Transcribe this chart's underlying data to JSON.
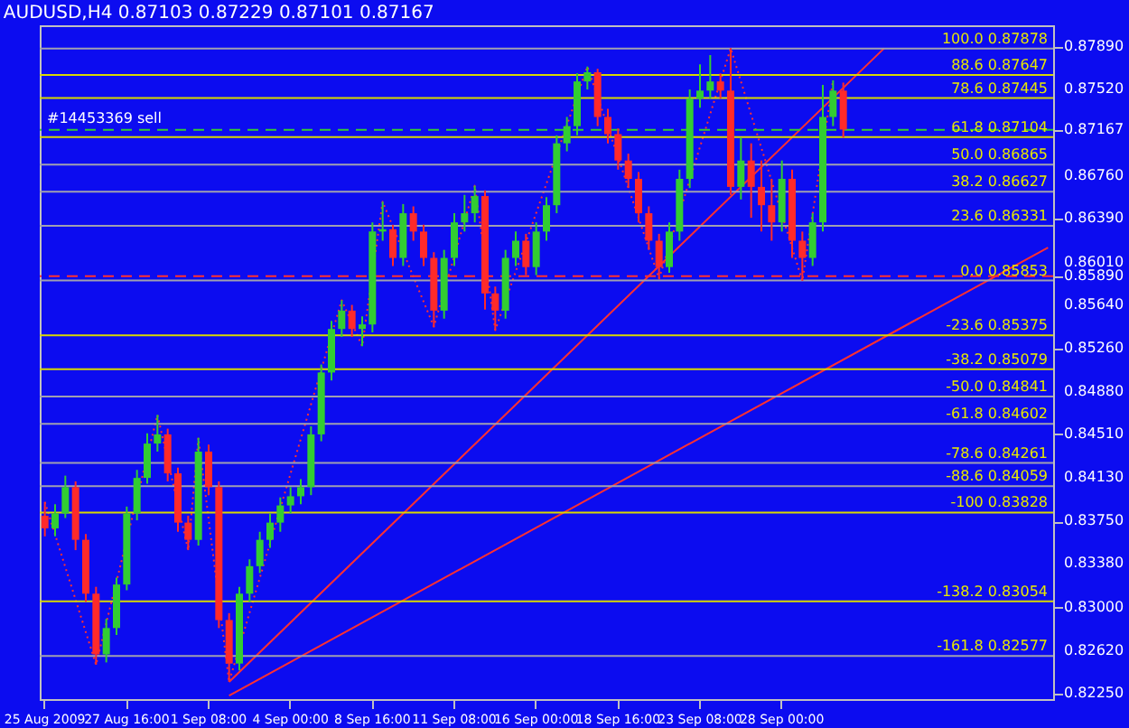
{
  "chart_data": {
    "type": "candlestick",
    "title": "AUDUSD,H4  0.87103 0.87229 0.87101 0.87167",
    "categories": [
      "25 Aug 2009",
      null,
      null,
      null,
      null,
      null,
      null,
      null,
      "27 Aug 16:00",
      null,
      null,
      null,
      null,
      null,
      null,
      null,
      "1 Sep 08:00",
      null,
      null,
      null,
      null,
      null,
      null,
      null,
      "4 Sep 00:00",
      null,
      null,
      null,
      null,
      null,
      null,
      null,
      "8 Sep 16:00",
      null,
      null,
      null,
      null,
      null,
      null,
      null,
      "11 Sep 08:00",
      null,
      null,
      null,
      null,
      null,
      null,
      null,
      "16 Sep 00:00",
      null,
      null,
      null,
      null,
      null,
      null,
      null,
      "18 Sep 16:00",
      null,
      null,
      null,
      null,
      null,
      null,
      null,
      "23 Sep 08:00",
      null,
      null,
      null,
      null,
      null,
      null,
      null,
      "28 Sep 00:00",
      null,
      null,
      null,
      null,
      null,
      null,
      null,
      null,
      null,
      null,
      null,
      null,
      null,
      null,
      null,
      null,
      null,
      null,
      null,
      null,
      null,
      null,
      null,
      null,
      null,
      null
    ],
    "ohlc": [
      [
        0.838,
        0.8392,
        0.8362,
        0.8369
      ],
      [
        0.8369,
        0.839,
        0.8362,
        0.8382
      ],
      [
        0.8382,
        0.8415,
        0.8378,
        0.8405
      ],
      [
        0.8405,
        0.841,
        0.835,
        0.8359
      ],
      [
        0.8359,
        0.8364,
        0.8305,
        0.8312
      ],
      [
        0.8312,
        0.8318,
        0.825,
        0.8259
      ],
      [
        0.8259,
        0.829,
        0.8252,
        0.8282
      ],
      [
        0.8282,
        0.8326,
        0.8276,
        0.832
      ],
      [
        0.832,
        0.8388,
        0.8315,
        0.8382
      ],
      [
        0.8382,
        0.842,
        0.8376,
        0.8413
      ],
      [
        0.8413,
        0.8452,
        0.8408,
        0.8443
      ],
      [
        0.8443,
        0.8468,
        0.8436,
        0.8451
      ],
      [
        0.8451,
        0.8456,
        0.841,
        0.8417
      ],
      [
        0.8417,
        0.8422,
        0.8366,
        0.8374
      ],
      [
        0.8374,
        0.838,
        0.835,
        0.8359
      ],
      [
        0.8359,
        0.8448,
        0.8354,
        0.8436
      ],
      [
        0.8436,
        0.8442,
        0.8398,
        0.8405
      ],
      [
        0.8405,
        0.841,
        0.8282,
        0.8289
      ],
      [
        0.8289,
        0.8295,
        0.8235,
        0.8251
      ],
      [
        0.8251,
        0.8318,
        0.8245,
        0.8312
      ],
      [
        0.8312,
        0.8342,
        0.8305,
        0.8336
      ],
      [
        0.8336,
        0.8366,
        0.833,
        0.8359
      ],
      [
        0.8359,
        0.8382,
        0.8352,
        0.8374
      ],
      [
        0.8374,
        0.8396,
        0.8366,
        0.8389
      ],
      [
        0.8389,
        0.8405,
        0.8382,
        0.8397
      ],
      [
        0.8397,
        0.8412,
        0.839,
        0.8405
      ],
      [
        0.8405,
        0.8458,
        0.8398,
        0.8451
      ],
      [
        0.8451,
        0.8512,
        0.8445,
        0.8505
      ],
      [
        0.8505,
        0.855,
        0.8498,
        0.8543
      ],
      [
        0.8543,
        0.8568,
        0.8536,
        0.8559
      ],
      [
        0.8559,
        0.8564,
        0.8536,
        0.8543
      ],
      [
        0.8543,
        0.8554,
        0.8528,
        0.8547
      ],
      [
        0.8547,
        0.8636,
        0.854,
        0.8628
      ],
      [
        0.8628,
        0.8654,
        0.862,
        0.863
      ],
      [
        0.863,
        0.8634,
        0.8598,
        0.8605
      ],
      [
        0.8605,
        0.8652,
        0.8598,
        0.8644
      ],
      [
        0.8644,
        0.865,
        0.862,
        0.8628
      ],
      [
        0.8628,
        0.8634,
        0.8598,
        0.8605
      ],
      [
        0.8605,
        0.861,
        0.8545,
        0.8559
      ],
      [
        0.8559,
        0.8612,
        0.8552,
        0.8605
      ],
      [
        0.8605,
        0.8644,
        0.8598,
        0.8636
      ],
      [
        0.8636,
        0.866,
        0.8628,
        0.8644
      ],
      [
        0.8644,
        0.8668,
        0.8636,
        0.8659
      ],
      [
        0.8659,
        0.8664,
        0.856,
        0.8574
      ],
      [
        0.8574,
        0.858,
        0.8542,
        0.8559
      ],
      [
        0.8559,
        0.8612,
        0.8552,
        0.8605
      ],
      [
        0.8605,
        0.8628,
        0.8598,
        0.862
      ],
      [
        0.862,
        0.8626,
        0.859,
        0.8597
      ],
      [
        0.8597,
        0.8636,
        0.859,
        0.8628
      ],
      [
        0.8628,
        0.8658,
        0.862,
        0.8651
      ],
      [
        0.8651,
        0.8712,
        0.8644,
        0.8705
      ],
      [
        0.8705,
        0.8728,
        0.8698,
        0.872
      ],
      [
        0.872,
        0.8766,
        0.8712,
        0.8759
      ],
      [
        0.8759,
        0.8772,
        0.8752,
        0.8767
      ],
      [
        0.8767,
        0.877,
        0.872,
        0.8728
      ],
      [
        0.8728,
        0.8735,
        0.8705,
        0.8713
      ],
      [
        0.8713,
        0.8718,
        0.8682,
        0.869
      ],
      [
        0.869,
        0.8696,
        0.8666,
        0.8674
      ],
      [
        0.8674,
        0.868,
        0.8636,
        0.8644
      ],
      [
        0.8644,
        0.865,
        0.8612,
        0.862
      ],
      [
        0.862,
        0.8626,
        0.8587,
        0.8597
      ],
      [
        0.8597,
        0.8636,
        0.8592,
        0.8628
      ],
      [
        0.8628,
        0.8682,
        0.862,
        0.8674
      ],
      [
        0.8674,
        0.8752,
        0.8666,
        0.8744
      ],
      [
        0.8744,
        0.8774,
        0.8736,
        0.8751
      ],
      [
        0.8751,
        0.8782,
        0.8744,
        0.8759
      ],
      [
        0.8759,
        0.8766,
        0.8744,
        0.8751
      ],
      [
        0.8751,
        0.8788,
        0.866,
        0.8667
      ],
      [
        0.8667,
        0.871,
        0.8656,
        0.869
      ],
      [
        0.869,
        0.8705,
        0.864,
        0.8667
      ],
      [
        0.8667,
        0.869,
        0.8628,
        0.8651
      ],
      [
        0.8651,
        0.8674,
        0.862,
        0.8636
      ],
      [
        0.8636,
        0.869,
        0.8628,
        0.8674
      ],
      [
        0.8674,
        0.8682,
        0.8605,
        0.862
      ],
      [
        0.862,
        0.8628,
        0.8585,
        0.8605
      ],
      [
        0.8605,
        0.8644,
        0.8598,
        0.8636
      ],
      [
        0.8636,
        0.8756,
        0.8628,
        0.8728
      ],
      [
        0.8728,
        0.876,
        0.872,
        0.8751
      ],
      [
        0.8751,
        0.8758,
        0.871,
        0.8717
      ],
      null,
      null,
      null,
      null,
      null,
      null,
      null,
      null,
      null,
      null,
      null,
      null,
      null,
      null,
      null,
      null,
      null,
      null,
      null,
      null
    ],
    "colors": [
      "#ff2a2a",
      "#32cd32",
      "#32cd32",
      "#ff2a2a",
      "#ff2a2a",
      "#ff2a2a",
      "#32cd32",
      "#32cd32",
      "#32cd32",
      "#32cd32",
      "#32cd32",
      "#32cd32",
      "#ff2a2a",
      "#ff2a2a",
      "#ff2a2a",
      "#32cd32",
      "#ff2a2a",
      "#ff2a2a",
      "#ff2a2a",
      "#32cd32",
      "#32cd32",
      "#32cd32",
      "#32cd32",
      "#32cd32",
      "#32cd32",
      "#32cd32",
      "#32cd32",
      "#32cd32",
      "#32cd32",
      "#32cd32",
      "#ff2a2a",
      "#32cd32",
      "#32cd32",
      "#32cd32",
      "#ff2a2a",
      "#32cd32",
      "#ff2a2a",
      "#ff2a2a",
      "#ff2a2a",
      "#32cd32",
      "#32cd32",
      "#32cd32",
      "#32cd32",
      "#ff2a2a",
      "#ff2a2a",
      "#32cd32",
      "#32cd32",
      "#ff2a2a",
      "#32cd32",
      "#32cd32",
      "#32cd32",
      "#32cd32",
      "#32cd32",
      "#32cd32",
      "#ff2a2a",
      "#ff2a2a",
      "#ff2a2a",
      "#ff2a2a",
      "#ff2a2a",
      "#ff2a2a",
      "#ff2a2a",
      "#32cd32",
      "#32cd32",
      "#32cd32",
      "#32cd32",
      "#32cd32",
      "#ff2a2a",
      "#ff2a2a",
      "#32cd32",
      "#ff2a2a",
      "#ff2a2a",
      "#ff2a2a",
      "#32cd32",
      "#ff2a2a",
      "#ff2a2a",
      "#32cd32",
      "#32cd32",
      "#32cd32",
      "#ff2a2a",
      null,
      null,
      null,
      null,
      null,
      null,
      null,
      null,
      null,
      null,
      null,
      null,
      null,
      null,
      null,
      null,
      null,
      null,
      null,
      null
    ],
    "series": [
      {
        "type": "line",
        "color": "#ff3030",
        "line_style": "dotted",
        "values": [
          0.8392,
          null,
          null,
          null,
          null,
          0.825,
          null,
          null,
          null,
          null,
          null,
          0.8468,
          null,
          null,
          0.835,
          0.8448,
          null,
          null,
          0.8235,
          null,
          null,
          null,
          null,
          null,
          null,
          null,
          null,
          null,
          null,
          0.8568,
          null,
          0.8528,
          null,
          0.8654,
          null,
          null,
          null,
          null,
          0.8545,
          null,
          null,
          null,
          0.8668,
          null,
          0.8542,
          null,
          null,
          null,
          null,
          null,
          null,
          null,
          null,
          0.8772,
          null,
          null,
          null,
          null,
          null,
          null,
          0.8587,
          null,
          null,
          null,
          null,
          null,
          null,
          0.8788,
          null,
          null,
          null,
          null,
          null,
          null,
          0.8585,
          null,
          null,
          0.876,
          null,
          null,
          null,
          null,
          null,
          null,
          null,
          null,
          null,
          null,
          null,
          null,
          null,
          null,
          null,
          null,
          null,
          null,
          null,
          null,
          null
        ]
      },
      {
        "type": "line",
        "color": "#ff3030",
        "line_style": "solid",
        "values": [
          null,
          null,
          null,
          null,
          null,
          null,
          null,
          null,
          null,
          null,
          null,
          null,
          null,
          null,
          null,
          null,
          null,
          null,
          0.8235,
          null,
          null,
          null,
          null,
          null,
          null,
          null,
          null,
          null,
          null,
          null,
          null,
          null,
          null,
          null,
          null,
          null,
          null,
          null,
          null,
          null,
          null,
          null,
          null,
          null,
          null,
          null,
          null,
          null,
          null,
          null,
          null,
          null,
          null,
          null,
          null,
          null,
          null,
          null,
          null,
          null,
          null,
          null,
          null,
          null,
          null,
          null,
          null,
          null,
          null,
          null,
          null,
          null,
          null,
          null,
          null,
          null,
          null,
          null,
          null,
          null,
          null,
          null,
          0.8788,
          null,
          null,
          null,
          null,
          null,
          null,
          null,
          null,
          null,
          null,
          null,
          null,
          null,
          null,
          null,
          null
        ]
      },
      {
        "type": "line",
        "color": "#ff3030",
        "line_style": "solid",
        "values": [
          null,
          null,
          null,
          null,
          null,
          null,
          null,
          null,
          null,
          null,
          null,
          null,
          null,
          null,
          null,
          null,
          null,
          null,
          0.8223,
          null,
          null,
          null,
          null,
          null,
          null,
          null,
          null,
          null,
          null,
          null,
          null,
          null,
          null,
          null,
          null,
          null,
          null,
          null,
          null,
          null,
          null,
          null,
          null,
          null,
          null,
          null,
          null,
          null,
          null,
          null,
          null,
          null,
          null,
          null,
          null,
          null,
          null,
          null,
          null,
          null,
          null,
          null,
          null,
          null,
          null,
          null,
          null,
          null,
          null,
          null,
          null,
          null,
          null,
          null,
          null,
          null,
          null,
          null,
          null,
          null,
          null,
          null,
          null,
          null,
          null,
          null,
          null,
          null,
          null,
          null,
          null,
          null,
          null,
          null,
          null,
          null,
          null,
          null,
          0.8614
        ]
      }
    ],
    "ylim": [
      0.822,
      0.8808
    ],
    "yticks": [
      {
        "value": 0.8225,
        "label": "0.82250"
      },
      {
        "value": 0.8262,
        "label": "0.82620"
      },
      {
        "value": 0.83,
        "label": "0.83000"
      },
      {
        "value": 0.8338,
        "label": "0.83380"
      },
      {
        "value": 0.8375,
        "label": "0.83750"
      },
      {
        "value": 0.8413,
        "label": "0.84130"
      },
      {
        "value": 0.8451,
        "label": "0.84510"
      },
      {
        "value": 0.8488,
        "label": "0.84880"
      },
      {
        "value": 0.8526,
        "label": "0.85260"
      },
      {
        "value": 0.8564,
        "label": "0.85640"
      },
      {
        "value": 0.8589,
        "label": "0.85890"
      },
      {
        "value": 0.8601,
        "label": "0.86010"
      },
      {
        "value": 0.8639,
        "label": "0.86390"
      },
      {
        "value": 0.8676,
        "label": "0.86760"
      },
      {
        "value": 0.87167,
        "label": "0.87167"
      },
      {
        "value": 0.8752,
        "label": "0.87520"
      },
      {
        "value": 0.8789,
        "label": "0.87890"
      }
    ],
    "ref_lines": [
      {
        "axis": "y",
        "value": 0.87167,
        "label": "#14453369 sell",
        "color": "#33cc33",
        "line_style": "dashed"
      },
      {
        "axis": "y",
        "value": 0.8589,
        "color": "#ff3030",
        "line_style": "dashed"
      },
      {
        "axis": "y",
        "value": 0.87878,
        "label": "100.0  0.87878",
        "color": "#a0a0b0"
      },
      {
        "axis": "y",
        "value": 0.87647,
        "label": "88.6  0.87647",
        "color": "#d8d800"
      },
      {
        "axis": "y",
        "value": 0.87445,
        "label": "78.6  0.87445",
        "color": "#d8d800"
      },
      {
        "axis": "y",
        "value": 0.87104,
        "label": "61.8  0.87104",
        "color": "#d8d800"
      },
      {
        "axis": "y",
        "value": 0.86865,
        "label": "50.0  0.86865",
        "color": "#a0a0b0"
      },
      {
        "axis": "y",
        "value": 0.86627,
        "label": "38.2  0.86627",
        "color": "#a0a0b0"
      },
      {
        "axis": "y",
        "value": 0.86331,
        "label": "23.6  0.86331",
        "color": "#a0a0b0"
      },
      {
        "axis": "y",
        "value": 0.85853,
        "label": "0.0  0.85853",
        "color": "#a0a0b0"
      },
      {
        "axis": "y",
        "value": 0.85375,
        "label": "-23.6  0.85375",
        "color": "#d8d800"
      },
      {
        "axis": "y",
        "value": 0.85079,
        "label": "-38.2  0.85079",
        "color": "#d8d800"
      },
      {
        "axis": "y",
        "value": 0.84841,
        "label": "-50.0  0.84841",
        "color": "#a0a0b0"
      },
      {
        "axis": "y",
        "value": 0.84602,
        "label": "-61.8  0.84602",
        "color": "#a0a0b0"
      },
      {
        "axis": "y",
        "value": 0.84261,
        "label": "-78.6  0.84261",
        "color": "#a0a0b0"
      },
      {
        "axis": "y",
        "value": 0.84059,
        "label": "-88.6  0.84059",
        "color": "#a0a0b0"
      },
      {
        "axis": "y",
        "value": 0.83828,
        "label": "-100  0.83828",
        "color": "#d8d800"
      },
      {
        "axis": "y",
        "value": 0.83054,
        "label": "-138.2  0.83054",
        "color": "#d8d800"
      },
      {
        "axis": "y",
        "value": 0.82577,
        "label": "-161.8  0.82577",
        "color": "#a0a0b0"
      }
    ]
  }
}
